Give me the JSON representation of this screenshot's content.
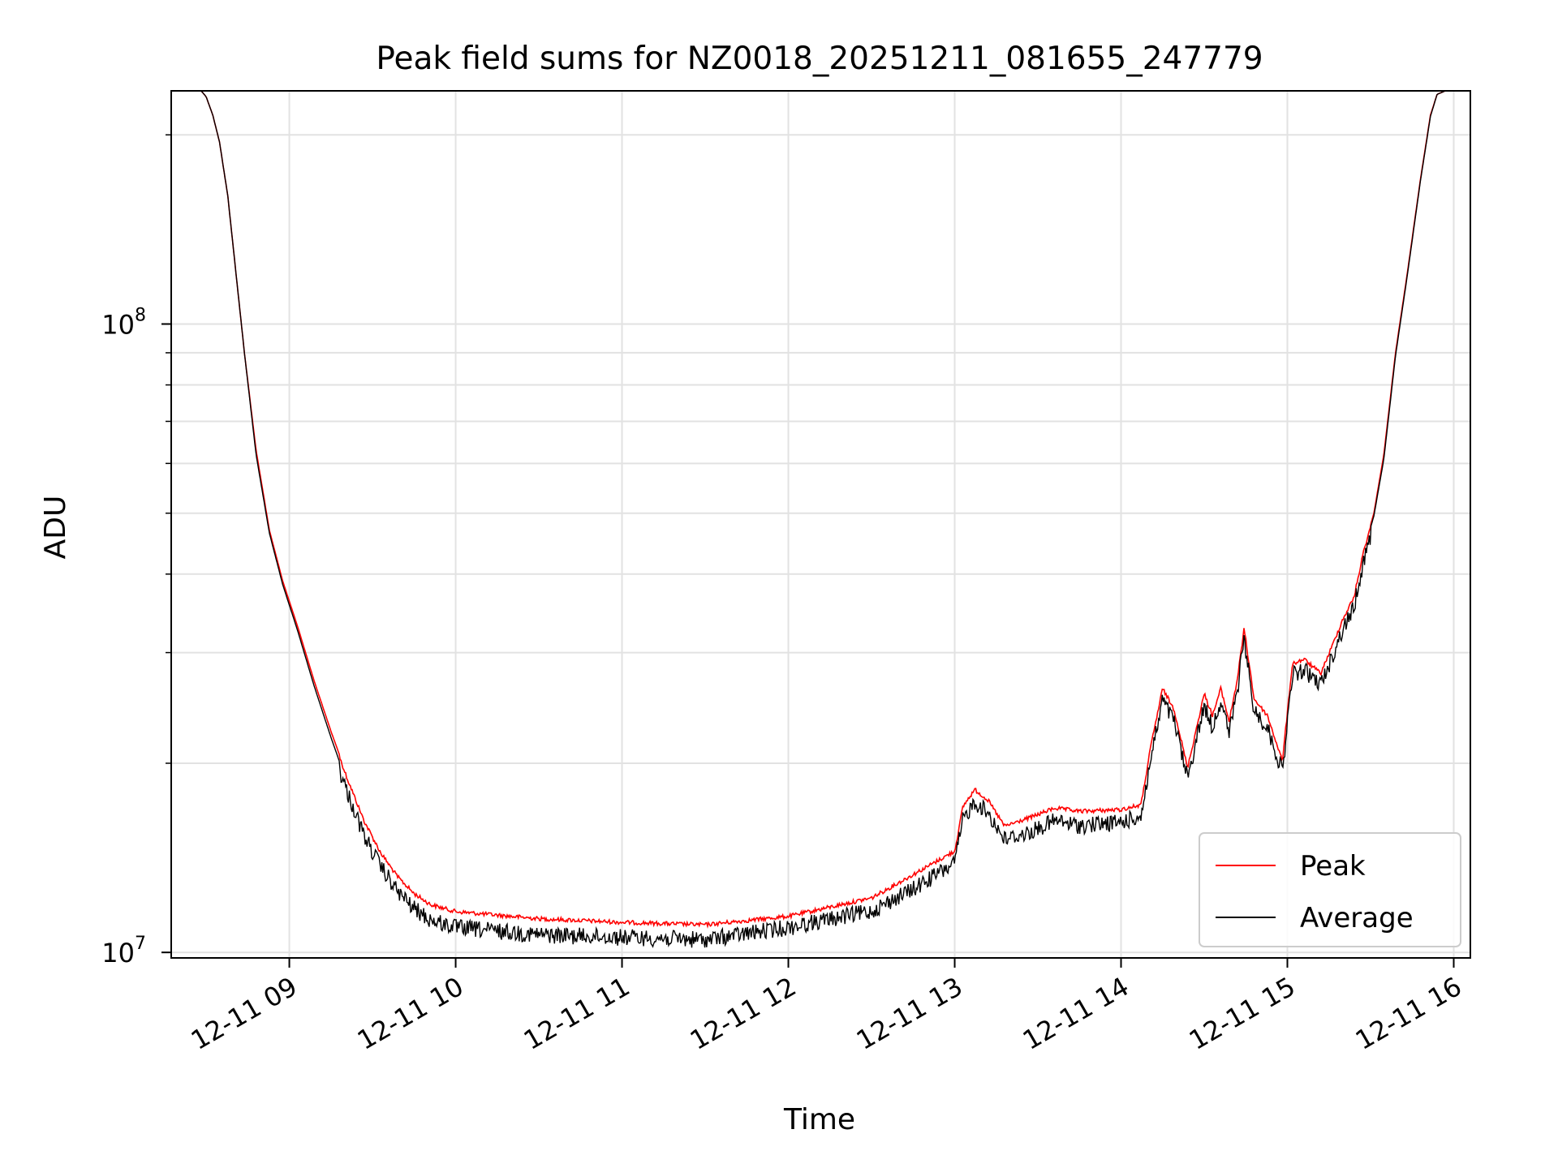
{
  "chart_data": {
    "type": "line",
    "title": "Peak field sums for NZ0018_20251211_081655_247779",
    "xlabel": "Time",
    "ylabel": "ADU",
    "y_scale": "log",
    "grid": true,
    "legend_position": "lower-right",
    "x_tick_labels": [
      "12-11 09",
      "12-11 10",
      "12-11 11",
      "12-11 12",
      "12-11 13",
      "12-11 14",
      "12-11 15",
      "12-11 16"
    ],
    "x_tick_hours": [
      9,
      10,
      11,
      12,
      13,
      14,
      15,
      16
    ],
    "x_range_hours": [
      8.29,
      16.1
    ],
    "y_major_ticks": [
      {
        "value": 10000000,
        "base": "10",
        "exp": "7"
      },
      {
        "value": 100000000,
        "base": "10",
        "exp": "8"
      }
    ],
    "y_range": [
      9800000,
      235000000
    ],
    "series": [
      {
        "name": "Peak",
        "color": "#ff0000",
        "points": [
          [
            8.29,
            235000000
          ],
          [
            8.47,
            235000000
          ],
          [
            8.5,
            230000000
          ],
          [
            8.54,
            215000000
          ],
          [
            8.58,
            195000000
          ],
          [
            8.63,
            160000000
          ],
          [
            8.68,
            120000000
          ],
          [
            8.73,
            90000000
          ],
          [
            8.8,
            63000000
          ],
          [
            8.88,
            47000000
          ],
          [
            8.96,
            39000000
          ],
          [
            9.05,
            33000000
          ],
          [
            9.15,
            27000000
          ],
          [
            9.25,
            22500000
          ],
          [
            9.35,
            19000000
          ],
          [
            9.45,
            16300000
          ],
          [
            9.55,
            14500000
          ],
          [
            9.65,
            13300000
          ],
          [
            9.75,
            12500000
          ],
          [
            9.85,
            12000000
          ],
          [
            10.0,
            11700000
          ],
          [
            10.5,
            11400000
          ],
          [
            11.0,
            11250000
          ],
          [
            11.5,
            11150000
          ],
          [
            12.0,
            11500000
          ],
          [
            12.5,
            12300000
          ],
          [
            12.75,
            13400000
          ],
          [
            13.0,
            14600000
          ],
          [
            13.05,
            17200000
          ],
          [
            13.12,
            18300000
          ],
          [
            13.2,
            17600000
          ],
          [
            13.3,
            16000000
          ],
          [
            13.45,
            16500000
          ],
          [
            13.6,
            17100000
          ],
          [
            13.75,
            16900000
          ],
          [
            14.0,
            17000000
          ],
          [
            14.12,
            17300000
          ],
          [
            14.18,
            21500000
          ],
          [
            14.25,
            26500000
          ],
          [
            14.32,
            24500000
          ],
          [
            14.4,
            19800000
          ],
          [
            14.5,
            26000000
          ],
          [
            14.55,
            24000000
          ],
          [
            14.6,
            26500000
          ],
          [
            14.65,
            23500000
          ],
          [
            14.7,
            27500000
          ],
          [
            14.74,
            33000000
          ],
          [
            14.8,
            25500000
          ],
          [
            14.88,
            24000000
          ],
          [
            14.97,
            20300000
          ],
          [
            15.03,
            29000000
          ],
          [
            15.1,
            29500000
          ],
          [
            15.2,
            28000000
          ],
          [
            15.27,
            31000000
          ],
          [
            15.33,
            34000000
          ],
          [
            15.4,
            37000000
          ],
          [
            15.46,
            44000000
          ],
          [
            15.52,
            50000000
          ],
          [
            15.58,
            62000000
          ],
          [
            15.65,
            90000000
          ],
          [
            15.72,
            120000000
          ],
          [
            15.8,
            170000000
          ],
          [
            15.86,
            215000000
          ],
          [
            15.9,
            232000000
          ],
          [
            15.95,
            235000000
          ],
          [
            16.1,
            235000000
          ]
        ]
      },
      {
        "name": "Average",
        "color": "#000000",
        "points": [
          [
            8.29,
            235000000
          ],
          [
            8.47,
            235000000
          ],
          [
            8.5,
            230000000
          ],
          [
            8.54,
            215000000
          ],
          [
            8.58,
            195000000
          ],
          [
            8.63,
            160000000
          ],
          [
            8.68,
            120000000
          ],
          [
            8.73,
            90000000
          ],
          [
            8.8,
            62000000
          ],
          [
            8.88,
            46500000
          ],
          [
            8.96,
            38500000
          ],
          [
            9.05,
            32500000
          ],
          [
            9.15,
            26500000
          ],
          [
            9.25,
            22000000
          ],
          [
            9.35,
            18500000
          ],
          [
            9.45,
            15800000
          ],
          [
            9.55,
            14100000
          ],
          [
            9.65,
            12900000
          ],
          [
            9.75,
            12100000
          ],
          [
            9.85,
            11600000
          ],
          [
            10.0,
            11300000
          ],
          [
            10.5,
            11000000
          ],
          [
            11.0,
            10900000
          ],
          [
            11.5,
            10800000
          ],
          [
            12.0,
            11300000
          ],
          [
            12.5,
            12000000
          ],
          [
            12.75,
            13000000
          ],
          [
            13.0,
            14300000
          ],
          [
            13.05,
            16800000
          ],
          [
            13.12,
            17900000
          ],
          [
            13.2,
            17200000
          ],
          [
            13.3,
            15600000
          ],
          [
            13.45,
            16000000
          ],
          [
            13.6,
            16700000
          ],
          [
            13.75,
            16400000
          ],
          [
            14.0,
            16600000
          ],
          [
            14.12,
            17000000
          ],
          [
            14.18,
            21000000
          ],
          [
            14.25,
            26000000
          ],
          [
            14.32,
            24000000
          ],
          [
            14.4,
            19500000
          ],
          [
            14.5,
            25500000
          ],
          [
            14.55,
            23500000
          ],
          [
            14.6,
            26000000
          ],
          [
            14.65,
            23000000
          ],
          [
            14.7,
            27000000
          ],
          [
            14.74,
            32500000
          ],
          [
            14.8,
            25000000
          ],
          [
            14.88,
            23500000
          ],
          [
            14.97,
            20000000
          ],
          [
            15.03,
            28500000
          ],
          [
            15.1,
            29000000
          ],
          [
            15.2,
            27500000
          ],
          [
            15.27,
            30500000
          ],
          [
            15.33,
            33500000
          ],
          [
            15.4,
            36500000
          ],
          [
            15.46,
            43500000
          ],
          [
            15.52,
            49500000
          ],
          [
            15.58,
            61000000
          ],
          [
            15.65,
            89000000
          ],
          [
            15.72,
            119000000
          ],
          [
            15.8,
            169000000
          ],
          [
            15.86,
            214000000
          ],
          [
            15.9,
            232000000
          ],
          [
            15.95,
            235000000
          ],
          [
            16.1,
            235000000
          ]
        ]
      }
    ]
  }
}
